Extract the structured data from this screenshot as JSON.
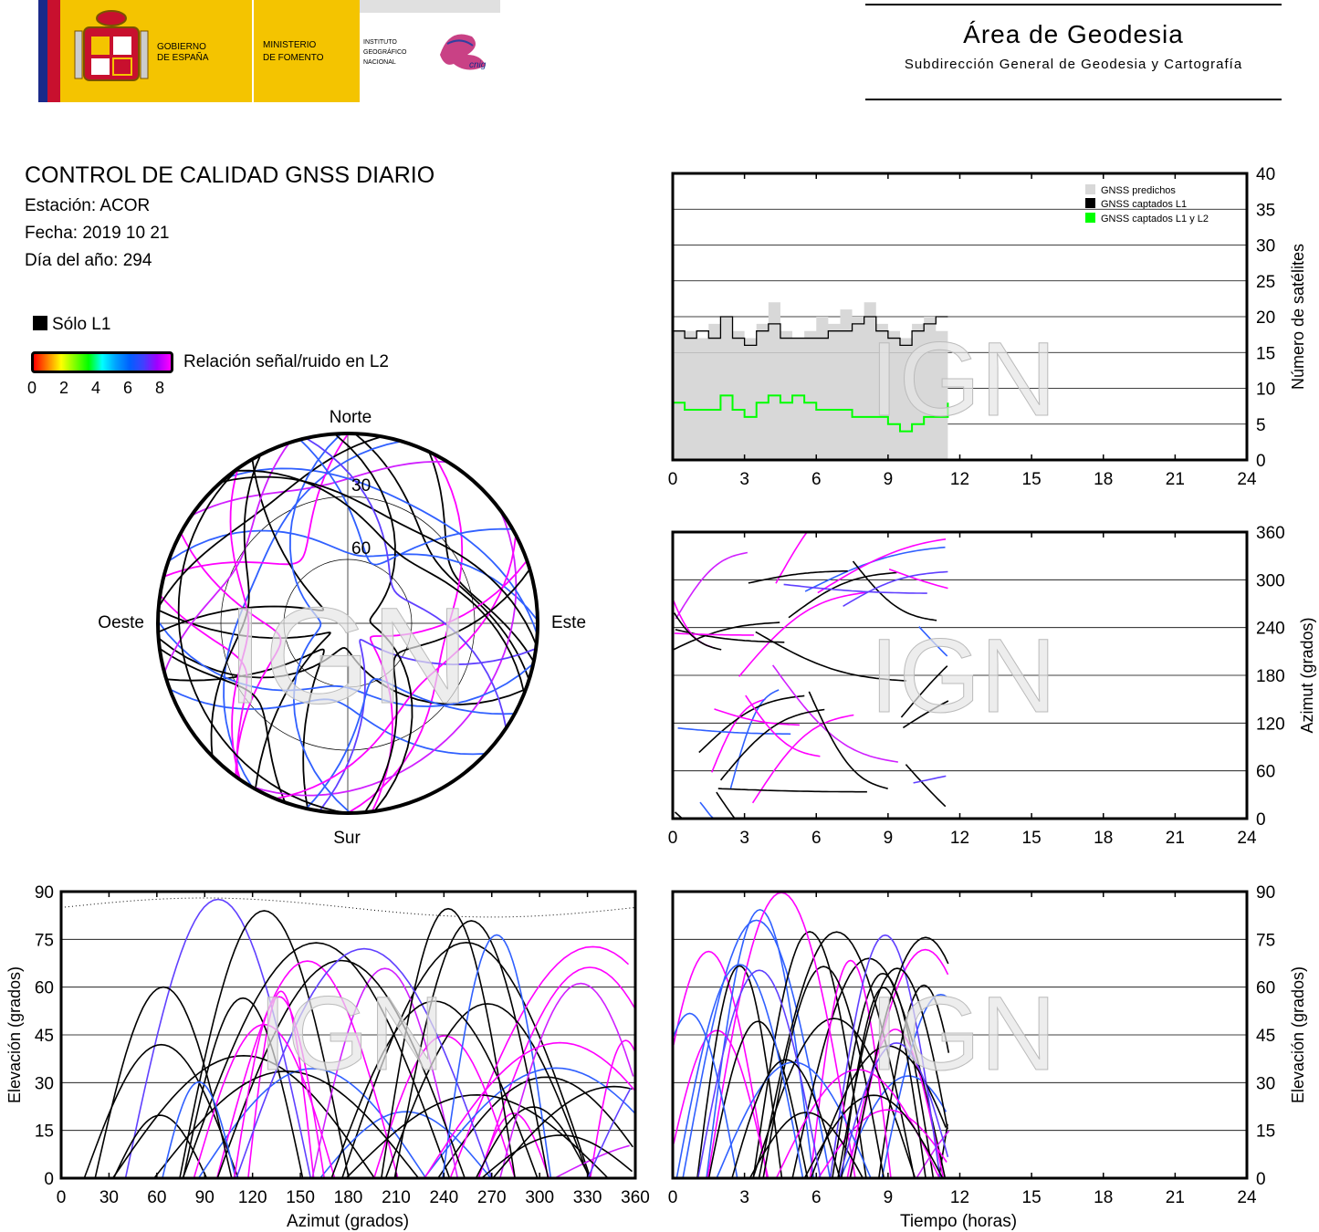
{
  "header": {
    "gov_line1": "GOBIERNO",
    "gov_line2": "DE ESPAÑA",
    "min_line1": "MINISTERIO",
    "min_line2": "DE FOMENTO",
    "ign_line1": "INSTITUTO",
    "ign_line2": "GEOGRÁFICO",
    "ign_line3": "NACIONAL",
    "cnig": "cnig",
    "area_title": "Área de Geodesia",
    "area_subtitle": "Subdirección General de Geodesia y Cartografía"
  },
  "info": {
    "title": "CONTROL DE CALIDAD GNSS DIARIO",
    "station": "Estación: ACOR",
    "date": "Fecha: 2019 10 21",
    "doy": "Día del año: 294"
  },
  "legend": {
    "l1_only": "Sólo L1",
    "snr_label": "Relación señal/ruido en L2",
    "snr_ticks": [
      "0",
      "2",
      "4",
      "6",
      "8"
    ]
  },
  "watermark": "IGN",
  "chart_data": [
    {
      "type": "scatter",
      "name": "skyplot",
      "cardinal": {
        "north": "Norte",
        "south": "Sur",
        "east": "Este",
        "west": "Oeste"
      },
      "rings": [
        "30",
        "60"
      ],
      "tracks_note_colors": {
        "l1_only": "#000000",
        "high_snr": "#ff00ff",
        "mid_snr": "#4060ff",
        "low_snr": "#00aaff"
      }
    },
    {
      "type": "line",
      "name": "satellite-count",
      "ylabel": "Número de satélites",
      "xlim": [
        0,
        24
      ],
      "ylim": [
        0,
        40
      ],
      "x_ticks": [
        "0",
        "3",
        "6",
        "9",
        "12",
        "15",
        "18",
        "21",
        "24"
      ],
      "y_ticks": [
        "0",
        "5",
        "10",
        "15",
        "20",
        "25",
        "30",
        "35",
        "40"
      ],
      "legend": [
        "GNSS predichos",
        "GNSS captados L1",
        "GNSS captados L1 y L2"
      ],
      "series": [
        {
          "name": "GNSS predichos",
          "color": "#d8d8d8",
          "x": [
            0,
            0.5,
            1,
            1.5,
            2,
            2.5,
            3,
            3.5,
            4,
            4.5,
            5,
            5.5,
            6,
            6.5,
            7,
            7.5,
            8,
            8.5,
            9,
            9.5,
            10,
            10.5,
            11,
            11.5
          ],
          "values": [
            18,
            18,
            17,
            19,
            20,
            18,
            17,
            19,
            22,
            18,
            17,
            18,
            20,
            19,
            21,
            20,
            22,
            19,
            18,
            17,
            19,
            20,
            18,
            19
          ]
        },
        {
          "name": "GNSS captados L1",
          "color": "#000000",
          "x": [
            0,
            0.5,
            1,
            1.5,
            2,
            2.5,
            3,
            3.5,
            4,
            4.5,
            5,
            5.5,
            6,
            6.5,
            7,
            7.5,
            8,
            8.5,
            9,
            9.5,
            10,
            10.5,
            11,
            11.5
          ],
          "values": [
            18,
            17,
            18,
            17,
            20,
            17,
            16,
            18,
            19,
            17,
            17,
            17,
            17,
            18,
            18,
            19,
            20,
            18,
            17,
            16,
            18,
            19,
            20,
            20
          ]
        },
        {
          "name": "GNSS captados L1 y L2",
          "color": "#00ff00",
          "x": [
            0,
            0.5,
            1,
            1.5,
            2,
            2.5,
            3,
            3.5,
            4,
            4.5,
            5,
            5.5,
            6,
            6.5,
            7,
            7.5,
            8,
            8.5,
            9,
            9.5,
            10,
            10.5,
            11,
            11.5
          ],
          "values": [
            8,
            7,
            7,
            7,
            9,
            7,
            6,
            8,
            9,
            8,
            9,
            8,
            7,
            7,
            7,
            6,
            6,
            6,
            5,
            4,
            5,
            6,
            6,
            8
          ]
        }
      ],
      "predicted_end_hour": 11.5
    },
    {
      "type": "scatter",
      "name": "azimuth-time",
      "ylabel": "Azimut (grados)",
      "xlim": [
        0,
        24
      ],
      "ylim": [
        0,
        360
      ],
      "x_ticks": [
        "0",
        "3",
        "6",
        "9",
        "12",
        "15",
        "18",
        "21",
        "24"
      ],
      "y_ticks": [
        "0",
        "60",
        "120",
        "180",
        "240",
        "300",
        "360"
      ]
    },
    {
      "type": "scatter",
      "name": "elevation-azimuth",
      "xlabel": "Azimut (grados)",
      "ylabel": "Elevación (grados)",
      "xlim": [
        0,
        360
      ],
      "ylim": [
        0,
        90
      ],
      "x_ticks": [
        "0",
        "30",
        "60",
        "90",
        "120",
        "150",
        "180",
        "210",
        "240",
        "270",
        "300",
        "330",
        "360"
      ],
      "y_ticks": [
        "0",
        "15",
        "30",
        "45",
        "60",
        "75",
        "90"
      ]
    },
    {
      "type": "scatter",
      "name": "elevation-time",
      "xlabel": "Tiempo (horas)",
      "ylabel": "Elevación (grados)",
      "xlim": [
        0,
        24
      ],
      "ylim": [
        0,
        90
      ],
      "x_ticks": [
        "0",
        "3",
        "6",
        "9",
        "12",
        "15",
        "18",
        "21",
        "24"
      ],
      "y_ticks": [
        "0",
        "15",
        "30",
        "45",
        "60",
        "75",
        "90"
      ]
    }
  ]
}
